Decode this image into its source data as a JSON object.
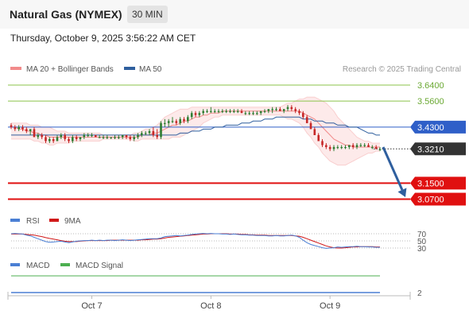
{
  "header": {
    "title": "Natural Gas (NYMEX)",
    "timeframe": "30 MIN"
  },
  "datetime": "Thursday, October 9, 2025 3:56:22 AM CET",
  "legend": {
    "bollinger": "MA 20 + Bollinger Bands",
    "ma50": "MA 50",
    "credit": "Research © 2025 Trading Central",
    "rsi": "RSI",
    "ma9": "9MA",
    "macd": "MACD",
    "macd_signal": "MACD Signal"
  },
  "colors": {
    "up": "#2e7d32",
    "down": "#c62828",
    "bollinger": "#f28b8b",
    "ma50": "#2f5f9e",
    "resistance": "#8bc34a",
    "support": "#e01010",
    "pivot": "#2f5fc8",
    "last": "#333333",
    "rsi": "#4a7fd4",
    "ma9": "#d01818",
    "macd_signal": "#4caf50"
  },
  "chart_data": [
    {
      "type": "candlestick",
      "title": "Natural Gas (NYMEX)",
      "interval": "30 MIN",
      "ylim": [
        3.02,
        3.69
      ],
      "x_ticks": [
        {
          "label": "Oct 7",
          "index": 21
        },
        {
          "label": "Oct 8",
          "index": 52
        },
        {
          "label": "Oct 9",
          "index": 83
        }
      ],
      "candles_ohlc": [
        [
          3.44,
          3.45,
          3.42,
          3.43
        ],
        [
          3.43,
          3.44,
          3.41,
          3.42
        ],
        [
          3.42,
          3.44,
          3.41,
          3.43
        ],
        [
          3.43,
          3.44,
          3.41,
          3.42
        ],
        [
          3.42,
          3.43,
          3.4,
          3.41
        ],
        [
          3.41,
          3.42,
          3.39,
          3.42
        ],
        [
          3.42,
          3.43,
          3.38,
          3.38
        ],
        [
          3.38,
          3.4,
          3.37,
          3.39
        ],
        [
          3.39,
          3.4,
          3.37,
          3.38
        ],
        [
          3.38,
          3.39,
          3.35,
          3.36
        ],
        [
          3.36,
          3.38,
          3.35,
          3.37
        ],
        [
          3.37,
          3.38,
          3.35,
          3.36
        ],
        [
          3.36,
          3.39,
          3.36,
          3.38
        ],
        [
          3.38,
          3.4,
          3.37,
          3.39
        ],
        [
          3.39,
          3.4,
          3.36,
          3.37
        ],
        [
          3.37,
          3.38,
          3.35,
          3.36
        ],
        [
          3.36,
          3.39,
          3.35,
          3.38
        ],
        [
          3.38,
          3.39,
          3.36,
          3.37
        ],
        [
          3.37,
          3.38,
          3.36,
          3.38
        ],
        [
          3.38,
          3.4,
          3.37,
          3.39
        ],
        [
          3.39,
          3.4,
          3.38,
          3.39
        ],
        [
          3.39,
          3.4,
          3.38,
          3.39
        ],
        [
          3.39,
          3.39,
          3.38,
          3.38
        ],
        [
          3.38,
          3.39,
          3.38,
          3.38
        ],
        [
          3.38,
          3.39,
          3.37,
          3.38
        ],
        [
          3.38,
          3.39,
          3.37,
          3.38
        ],
        [
          3.38,
          3.38,
          3.37,
          3.38
        ],
        [
          3.38,
          3.39,
          3.37,
          3.38
        ],
        [
          3.38,
          3.39,
          3.37,
          3.38
        ],
        [
          3.38,
          3.39,
          3.37,
          3.39
        ],
        [
          3.39,
          3.39,
          3.37,
          3.38
        ],
        [
          3.38,
          3.39,
          3.36,
          3.37
        ],
        [
          3.37,
          3.39,
          3.36,
          3.38
        ],
        [
          3.38,
          3.4,
          3.37,
          3.39
        ],
        [
          3.39,
          3.41,
          3.38,
          3.4
        ],
        [
          3.4,
          3.41,
          3.39,
          3.4
        ],
        [
          3.4,
          3.42,
          3.39,
          3.41
        ],
        [
          3.41,
          3.43,
          3.38,
          3.39
        ],
        [
          3.39,
          3.42,
          3.37,
          3.38
        ],
        [
          3.38,
          3.46,
          3.37,
          3.45
        ],
        [
          3.45,
          3.47,
          3.43,
          3.45
        ],
        [
          3.45,
          3.47,
          3.43,
          3.46
        ],
        [
          3.46,
          3.48,
          3.45,
          3.46
        ],
        [
          3.46,
          3.47,
          3.44,
          3.45
        ],
        [
          3.45,
          3.48,
          3.44,
          3.47
        ],
        [
          3.47,
          3.48,
          3.45,
          3.46
        ],
        [
          3.46,
          3.49,
          3.45,
          3.48
        ],
        [
          3.48,
          3.51,
          3.47,
          3.5
        ],
        [
          3.5,
          3.51,
          3.48,
          3.49
        ],
        [
          3.49,
          3.51,
          3.48,
          3.5
        ],
        [
          3.5,
          3.52,
          3.49,
          3.51
        ],
        [
          3.51,
          3.52,
          3.5,
          3.51
        ],
        [
          3.51,
          3.53,
          3.5,
          3.51
        ],
        [
          3.51,
          3.52,
          3.5,
          3.51
        ],
        [
          3.51,
          3.52,
          3.5,
          3.51
        ],
        [
          3.51,
          3.52,
          3.5,
          3.51
        ],
        [
          3.51,
          3.52,
          3.5,
          3.51
        ],
        [
          3.51,
          3.52,
          3.5,
          3.51
        ],
        [
          3.51,
          3.52,
          3.5,
          3.51
        ],
        [
          3.51,
          3.52,
          3.5,
          3.51
        ],
        [
          3.51,
          3.52,
          3.5,
          3.5
        ],
        [
          3.5,
          3.51,
          3.49,
          3.5
        ],
        [
          3.5,
          3.51,
          3.49,
          3.5
        ],
        [
          3.5,
          3.51,
          3.49,
          3.5
        ],
        [
          3.5,
          3.51,
          3.49,
          3.5
        ],
        [
          3.5,
          3.51,
          3.49,
          3.51
        ],
        [
          3.51,
          3.52,
          3.5,
          3.51
        ],
        [
          3.51,
          3.52,
          3.5,
          3.52
        ],
        [
          3.52,
          3.53,
          3.5,
          3.52
        ],
        [
          3.52,
          3.53,
          3.51,
          3.52
        ],
        [
          3.52,
          3.53,
          3.51,
          3.51
        ],
        [
          3.51,
          3.52,
          3.5,
          3.52
        ],
        [
          3.52,
          3.54,
          3.51,
          3.53
        ],
        [
          3.53,
          3.54,
          3.51,
          3.52
        ],
        [
          3.52,
          3.53,
          3.5,
          3.51
        ],
        [
          3.51,
          3.52,
          3.49,
          3.5
        ],
        [
          3.5,
          3.51,
          3.47,
          3.48
        ],
        [
          3.48,
          3.49,
          3.45,
          3.45
        ],
        [
          3.45,
          3.46,
          3.42,
          3.42
        ],
        [
          3.42,
          3.43,
          3.39,
          3.39
        ],
        [
          3.39,
          3.4,
          3.36,
          3.36
        ],
        [
          3.36,
          3.37,
          3.33,
          3.34
        ],
        [
          3.34,
          3.35,
          3.32,
          3.33
        ],
        [
          3.33,
          3.34,
          3.31,
          3.32
        ],
        [
          3.32,
          3.34,
          3.31,
          3.33
        ],
        [
          3.33,
          3.34,
          3.32,
          3.33
        ],
        [
          3.33,
          3.34,
          3.32,
          3.33
        ],
        [
          3.33,
          3.34,
          3.32,
          3.33
        ],
        [
          3.33,
          3.34,
          3.32,
          3.34
        ],
        [
          3.34,
          3.35,
          3.32,
          3.33
        ],
        [
          3.33,
          3.35,
          3.32,
          3.34
        ],
        [
          3.34,
          3.35,
          3.33,
          3.34
        ],
        [
          3.34,
          3.35,
          3.33,
          3.34
        ],
        [
          3.34,
          3.35,
          3.33,
          3.33
        ],
        [
          3.33,
          3.34,
          3.32,
          3.33
        ],
        [
          3.33,
          3.34,
          3.32,
          3.32
        ],
        [
          3.32,
          3.33,
          3.31,
          3.32
        ]
      ],
      "ma20": [
        3.43,
        3.43,
        3.42,
        3.42,
        3.41,
        3.41,
        3.4,
        3.4,
        3.39,
        3.39,
        3.38,
        3.38,
        3.38,
        3.38,
        3.38,
        3.38,
        3.38,
        3.38,
        3.38,
        3.38,
        3.38,
        3.38,
        3.38,
        3.38,
        3.38,
        3.38,
        3.38,
        3.38,
        3.38,
        3.38,
        3.38,
        3.38,
        3.38,
        3.38,
        3.39,
        3.39,
        3.39,
        3.4,
        3.4,
        3.41,
        3.42,
        3.43,
        3.44,
        3.44,
        3.45,
        3.46,
        3.46,
        3.47,
        3.48,
        3.48,
        3.49,
        3.49,
        3.5,
        3.5,
        3.5,
        3.51,
        3.51,
        3.51,
        3.51,
        3.51,
        3.51,
        3.51,
        3.51,
        3.51,
        3.51,
        3.51,
        3.51,
        3.51,
        3.51,
        3.51,
        3.51,
        3.51,
        3.51,
        3.51,
        3.51,
        3.51,
        3.5,
        3.49,
        3.48,
        3.47,
        3.45,
        3.43,
        3.41,
        3.39,
        3.37,
        3.36,
        3.35,
        3.34,
        3.34,
        3.33,
        3.33,
        3.33,
        3.33,
        3.33,
        3.33,
        3.33,
        3.33
      ],
      "bb_upper": [
        3.45,
        3.45,
        3.45,
        3.45,
        3.45,
        3.44,
        3.44,
        3.44,
        3.43,
        3.43,
        3.43,
        3.42,
        3.41,
        3.41,
        3.41,
        3.4,
        3.4,
        3.4,
        3.4,
        3.4,
        3.4,
        3.4,
        3.4,
        3.4,
        3.39,
        3.39,
        3.39,
        3.39,
        3.39,
        3.39,
        3.39,
        3.39,
        3.4,
        3.4,
        3.41,
        3.42,
        3.42,
        3.43,
        3.44,
        3.46,
        3.48,
        3.49,
        3.5,
        3.51,
        3.52,
        3.52,
        3.52,
        3.53,
        3.53,
        3.53,
        3.53,
        3.53,
        3.53,
        3.53,
        3.53,
        3.53,
        3.53,
        3.53,
        3.53,
        3.53,
        3.53,
        3.53,
        3.53,
        3.53,
        3.53,
        3.53,
        3.53,
        3.53,
        3.53,
        3.53,
        3.53,
        3.54,
        3.55,
        3.55,
        3.56,
        3.57,
        3.57,
        3.58,
        3.58,
        3.58,
        3.57,
        3.56,
        3.55,
        3.53,
        3.51,
        3.48,
        3.46,
        3.44,
        3.42,
        3.4,
        3.38,
        3.37,
        3.36,
        3.36,
        3.35,
        3.35,
        3.35
      ],
      "bb_lower": [
        3.37,
        3.37,
        3.37,
        3.37,
        3.37,
        3.37,
        3.36,
        3.36,
        3.35,
        3.35,
        3.34,
        3.34,
        3.35,
        3.35,
        3.35,
        3.35,
        3.36,
        3.36,
        3.36,
        3.36,
        3.36,
        3.36,
        3.36,
        3.36,
        3.37,
        3.37,
        3.37,
        3.37,
        3.37,
        3.37,
        3.37,
        3.37,
        3.36,
        3.36,
        3.37,
        3.37,
        3.37,
        3.37,
        3.37,
        3.37,
        3.37,
        3.37,
        3.38,
        3.38,
        3.38,
        3.39,
        3.4,
        3.41,
        3.42,
        3.43,
        3.45,
        3.46,
        3.47,
        3.48,
        3.48,
        3.49,
        3.49,
        3.49,
        3.49,
        3.49,
        3.49,
        3.49,
        3.49,
        3.49,
        3.49,
        3.49,
        3.49,
        3.49,
        3.49,
        3.49,
        3.49,
        3.48,
        3.47,
        3.47,
        3.46,
        3.45,
        3.43,
        3.4,
        3.38,
        3.35,
        3.33,
        3.3,
        3.28,
        3.26,
        3.25,
        3.24,
        3.24,
        3.24,
        3.25,
        3.26,
        3.27,
        3.28,
        3.29,
        3.3,
        3.3,
        3.31,
        3.31
      ],
      "ma50": [
        3.39,
        3.39,
        3.39,
        3.39,
        3.39,
        3.39,
        3.39,
        3.39,
        3.39,
        3.39,
        3.39,
        3.39,
        3.39,
        3.39,
        3.39,
        3.39,
        3.39,
        3.39,
        3.39,
        3.39,
        3.39,
        3.39,
        3.39,
        3.39,
        3.39,
        3.39,
        3.39,
        3.39,
        3.39,
        3.39,
        3.39,
        3.39,
        3.39,
        3.39,
        3.39,
        3.39,
        3.39,
        3.39,
        3.39,
        3.39,
        3.39,
        3.39,
        3.39,
        3.39,
        3.4,
        3.4,
        3.4,
        3.41,
        3.41,
        3.41,
        3.42,
        3.42,
        3.42,
        3.43,
        3.43,
        3.43,
        3.44,
        3.44,
        3.44,
        3.44,
        3.45,
        3.45,
        3.45,
        3.46,
        3.46,
        3.46,
        3.47,
        3.47,
        3.47,
        3.48,
        3.48,
        3.48,
        3.48,
        3.48,
        3.48,
        3.48,
        3.47,
        3.47,
        3.47,
        3.46,
        3.46,
        3.46,
        3.45,
        3.45,
        3.45,
        3.44,
        3.44,
        3.44,
        3.43,
        3.43,
        3.43,
        3.42,
        3.41,
        3.4,
        3.4,
        3.39,
        3.39
      ],
      "levels": [
        {
          "value": 3.64,
          "label": "3.6400",
          "kind": "resistance"
        },
        {
          "value": 3.56,
          "label": "3.5600",
          "kind": "resistance"
        },
        {
          "value": 3.43,
          "label": "3.4300",
          "kind": "pivot"
        },
        {
          "value": 3.321,
          "label": "3.3210",
          "kind": "last"
        },
        {
          "value": 3.15,
          "label": "3.1500",
          "kind": "support"
        },
        {
          "value": 3.07,
          "label": "3.0700",
          "kind": "support"
        }
      ],
      "forecast_arrow": {
        "from_value": 3.33,
        "to_value": 3.08
      }
    },
    {
      "type": "line",
      "name": "RSI",
      "ylim": [
        20,
        80
      ],
      "reference_levels": [
        {
          "value": 70,
          "label": "70"
        },
        {
          "value": 50,
          "label": "50"
        },
        {
          "value": 30,
          "label": "30"
        }
      ],
      "series": [
        {
          "name": "RSI",
          "values": [
            70,
            71,
            70,
            69,
            66,
            64,
            60,
            56,
            52,
            48,
            46,
            47,
            48,
            49,
            47,
            45,
            47,
            49,
            50,
            51,
            51,
            52,
            51,
            52,
            51,
            52,
            52,
            51,
            52,
            53,
            52,
            51,
            52,
            53,
            54,
            55,
            56,
            56,
            56,
            58,
            62,
            63,
            64,
            65,
            64,
            65,
            66,
            68,
            69,
            70,
            71,
            70,
            71,
            70,
            70,
            69,
            69,
            68,
            69,
            68,
            67,
            67,
            66,
            66,
            65,
            65,
            65,
            64,
            64,
            65,
            64,
            64,
            65,
            66,
            64,
            60,
            52,
            45,
            40,
            37,
            34,
            31,
            29,
            30,
            31,
            33,
            32,
            33,
            34,
            34,
            35,
            34,
            34,
            33,
            33,
            32,
            32
          ]
        },
        {
          "name": "9MA",
          "values": [
            69,
            69,
            69,
            69,
            68,
            67,
            66,
            64,
            62,
            59,
            57,
            55,
            53,
            51,
            49,
            48,
            48,
            48,
            49,
            50,
            51,
            51,
            51,
            51,
            51,
            51,
            52,
            52,
            52,
            52,
            52,
            52,
            52,
            52,
            53,
            53,
            54,
            55,
            55,
            56,
            58,
            60,
            61,
            62,
            63,
            64,
            65,
            66,
            67,
            68,
            69,
            69,
            70,
            70,
            70,
            70,
            70,
            69,
            69,
            69,
            68,
            68,
            67,
            67,
            66,
            66,
            66,
            65,
            65,
            65,
            65,
            65,
            65,
            65,
            64,
            63,
            60,
            56,
            52,
            48,
            44,
            40,
            36,
            33,
            31,
            30,
            30,
            31,
            32,
            33,
            33,
            34,
            34,
            34,
            34,
            33,
            33
          ]
        }
      ]
    },
    {
      "type": "line",
      "name": "MACD",
      "ylim": [
        -4,
        4
      ],
      "tick_labels": [
        "2"
      ],
      "series": [
        {
          "name": "MACD",
          "values": []
        },
        {
          "name": "MACD Signal",
          "values": []
        }
      ]
    }
  ]
}
